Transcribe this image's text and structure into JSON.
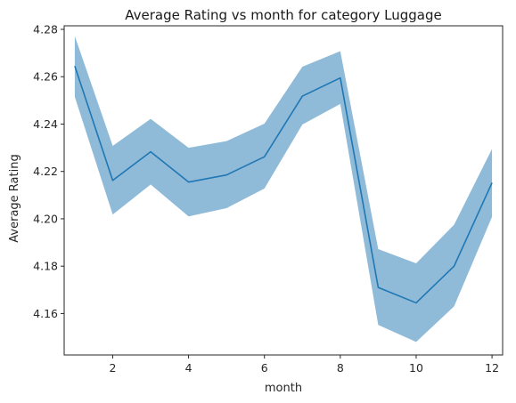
{
  "chart_data": {
    "type": "line",
    "title": "Average Rating vs month for category Luggage",
    "xlabel": "month",
    "ylabel": "Average Rating",
    "xlim": [
      0.72,
      12.28
    ],
    "ylim": [
      4.1425,
      4.2815
    ],
    "x_ticks": [
      2,
      4,
      6,
      8,
      10,
      12
    ],
    "y_ticks": [
      4.16,
      4.18,
      4.2,
      4.22,
      4.24,
      4.26,
      4.28
    ],
    "y_tick_labels": [
      "4.16",
      "4.18",
      "4.20",
      "4.22",
      "4.24",
      "4.26",
      "4.28"
    ],
    "x_tick_labels": [
      "2",
      "4",
      "6",
      "8",
      "10",
      "12"
    ],
    "grid": false,
    "legend": "none",
    "colors": {
      "line": "#1f77b4",
      "band": "#1f77b4"
    },
    "series": [
      {
        "x": [
          1,
          2,
          3,
          4,
          5,
          6,
          7,
          8,
          9,
          10,
          11,
          12
        ],
        "values": [
          4.2645,
          4.2162,
          4.2283,
          4.2155,
          4.2185,
          4.2262,
          4.2518,
          4.2595,
          4.171,
          4.1645,
          4.18,
          4.2152
        ],
        "lower": [
          4.2515,
          4.2018,
          4.2145,
          4.201,
          4.2045,
          4.2128,
          4.2398,
          4.2485,
          4.1552,
          4.148,
          4.163,
          4.2008
        ],
        "upper": [
          4.2772,
          4.2308,
          4.2422,
          4.23,
          4.2328,
          4.2402,
          4.2642,
          4.2708,
          4.1872,
          4.1812,
          4.1975,
          4.2295
        ]
      }
    ]
  }
}
